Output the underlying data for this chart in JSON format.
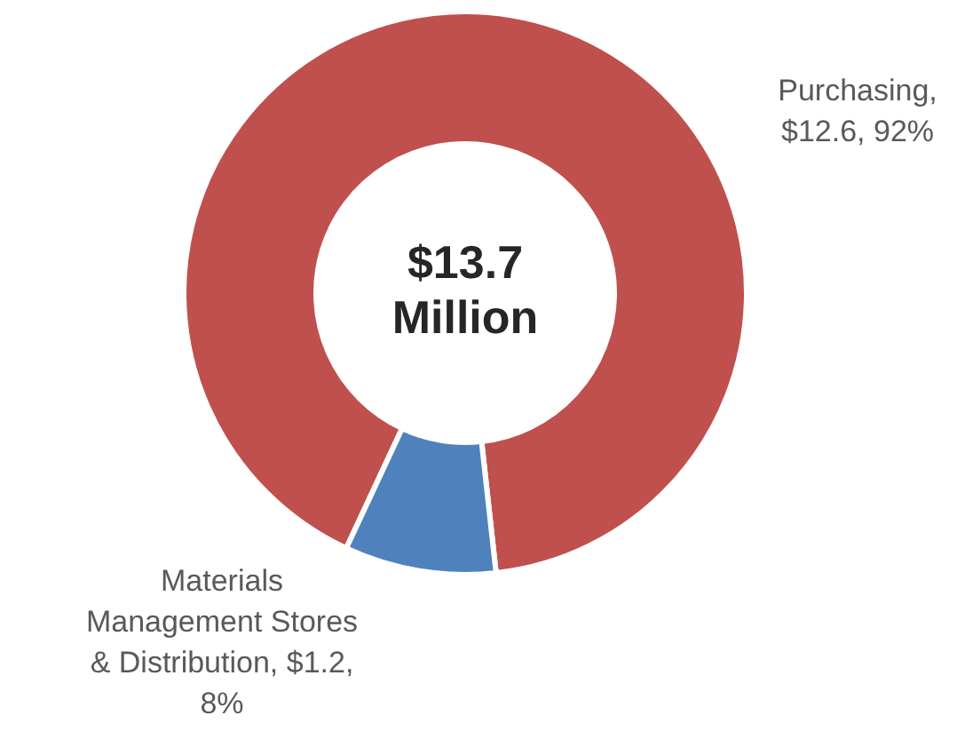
{
  "chart_data": {
    "type": "donut",
    "title": "$13.7 Million",
    "categories": [
      "Purchasing",
      "Materials Management Stores & Distribution"
    ],
    "values": [
      12.6,
      1.2
    ],
    "colors": [
      "#c0504d",
      "#4f81bd"
    ],
    "value_labels": [
      ", $12.6, 92%",
      ", $1.2, 8%"
    ],
    "legend": false
  }
}
